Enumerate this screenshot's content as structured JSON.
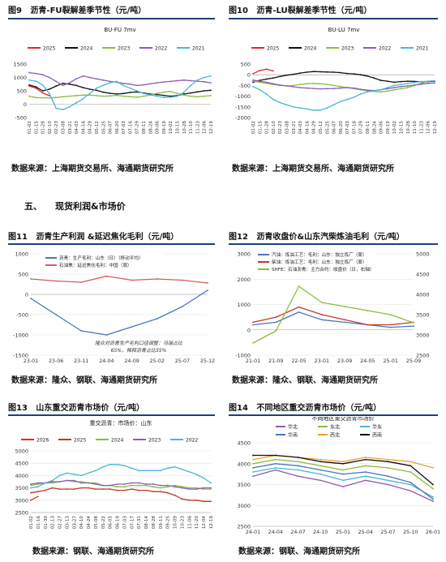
{
  "section": {
    "number": "五、",
    "title": "现货利润&市场价"
  },
  "figures": [
    {
      "label": "图9",
      "title": "沥青-FU裂解差季节性（元/吨）",
      "source": "数据来源：上海期货交易所、海通期货研究所",
      "legend": [
        "2025",
        "2024",
        "2023",
        "2022",
        "2021"
      ]
    },
    {
      "label": "图10",
      "title": "沥青-LU裂解差季节性（元/吨）",
      "source": "数据来源：上海期货交易所、海通期货研究所",
      "legend": [
        "2025",
        "2024",
        "2023",
        "2022",
        "2021"
      ]
    },
    {
      "label": "图11",
      "title": "沥青生产利润 &延迟焦化毛利（元/吨）",
      "source": "数据来源：隆众、钢联、海通期货研究所",
      "legend": [
        "沥青：生产毛利：山东（日）（移动平均）",
        "石油焦：延迟焦化毛利：中国（周）"
      ],
      "note": "隆众对沥青生产毛利口径调整：马瑞占比65%，稀释沥青占比35%"
    },
    {
      "label": "图12",
      "title": "沥青收盘价&山东汽柴炼油毛利（元/吨）",
      "source": "数据来源：隆众、钢联、海通期货研究所",
      "legend": [
        "汽油：炼油工艺：毛利：山东：独立炼厂（周）",
        "柴油：炼油工艺：毛利：山东：独立炼厂（周）",
        "SHFE：石油沥青：主力合约：收盘价（日，右轴）"
      ]
    },
    {
      "label": "图13",
      "title": "山东重交沥青市场价（元/吨）",
      "source": "数据来源：钢联、海通期货研究所",
      "legend": [
        "2026",
        "2025",
        "2024",
        "2023",
        "2022"
      ]
    },
    {
      "label": "图14",
      "title": "不同地区重交沥青市场价（元/吨）",
      "source": "数据来源：钢联、海通期货研究所",
      "legend": [
        "华北",
        "东北",
        "华东",
        "华南",
        "西北",
        "西南"
      ]
    }
  ],
  "chart_data": [
    {
      "type": "line",
      "title": "BU-FU 7mv",
      "xlabel": "",
      "ylabel": "",
      "ylim": [
        -500,
        1500
      ],
      "yticks": [
        -500,
        0,
        500,
        1000,
        1500
      ],
      "x": [
        "01-02",
        "01-15",
        "01-28",
        "02-10",
        "02-23",
        "03-08",
        "03-21",
        "04-03",
        "04-16",
        "04-29",
        "05-12",
        "05-25",
        "06-07",
        "06-20",
        "07-03",
        "07-16",
        "07-29",
        "08-11",
        "08-24",
        "09-06",
        "09-19",
        "10-02",
        "10-15",
        "10-28",
        "11-10",
        "11-23",
        "12-06",
        "12-19"
      ],
      "colors": {
        "2025": "#e8262a",
        "2024": "#111111",
        "2023": "#8bbd3e",
        "2022": "#8e5bb5",
        "2021": "#49b7d8"
      },
      "series": [
        {
          "name": "2025",
          "values": [
            680,
            600,
            420,
            320,
            null,
            null,
            null,
            null,
            null,
            null,
            null,
            null,
            null,
            null,
            null,
            null,
            null,
            null,
            null,
            null,
            null,
            null,
            null,
            null,
            null,
            null,
            null,
            null
          ]
        },
        {
          "name": "2024",
          "values": [
            720,
            650,
            500,
            560,
            680,
            780,
            750,
            700,
            620,
            560,
            520,
            450,
            410,
            380,
            400,
            440,
            460,
            420,
            380,
            360,
            330,
            300,
            320,
            380,
            420,
            460,
            500,
            520
          ]
        },
        {
          "name": "2023",
          "values": [
            300,
            250,
            240,
            230,
            250,
            280,
            300,
            320,
            340,
            340,
            320,
            300,
            310,
            330,
            300,
            280,
            260,
            300,
            340,
            400,
            450,
            480,
            400,
            340,
            300,
            280,
            300,
            320
          ]
        },
        {
          "name": "2022",
          "values": [
            1180,
            1150,
            1100,
            1000,
            850,
            700,
            800,
            950,
            1050,
            1000,
            950,
            900,
            850,
            820,
            780,
            750,
            700,
            720,
            760,
            800,
            830,
            850,
            880,
            900,
            880,
            860,
            840,
            800
          ]
        },
        {
          "name": "2021",
          "values": [
            900,
            860,
            720,
            400,
            -150,
            -200,
            -100,
            50,
            200,
            400,
            600,
            700,
            800,
            850,
            700,
            600,
            500,
            400,
            350,
            300,
            250,
            260,
            300,
            450,
            700,
            900,
            1000,
            1050
          ]
        }
      ]
    },
    {
      "type": "line",
      "title": "BU-LU 7mv",
      "xlabel": "",
      "ylabel": "",
      "ylim": [
        -2000,
        500
      ],
      "yticks": [
        -2000,
        -1500,
        -1000,
        -500,
        0,
        500
      ],
      "x": [
        "01-02",
        "01-15",
        "01-28",
        "02-10",
        "02-23",
        "03-08",
        "03-21",
        "04-03",
        "04-16",
        "04-29",
        "05-12",
        "05-25",
        "06-07",
        "06-20",
        "07-03",
        "07-16",
        "07-29",
        "08-11",
        "08-24",
        "09-06",
        "09-19",
        "10-02",
        "10-15",
        "10-28",
        "11-10",
        "11-23",
        "12-06",
        "12-19"
      ],
      "colors": {
        "2025": "#e8262a",
        "2024": "#111111",
        "2023": "#8bbd3e",
        "2022": "#8e5bb5",
        "2021": "#49b7d8"
      },
      "series": [
        {
          "name": "2025",
          "values": [
            50,
            200,
            260,
            180,
            null,
            null,
            null,
            null,
            null,
            null,
            null,
            null,
            null,
            null,
            null,
            null,
            null,
            null,
            null,
            null,
            null,
            null,
            null,
            null,
            null,
            null,
            null,
            null
          ]
        },
        {
          "name": "2024",
          "values": [
            -350,
            -260,
            -200,
            -150,
            -80,
            -20,
            20,
            80,
            120,
            150,
            140,
            130,
            120,
            100,
            60,
            40,
            0,
            -60,
            -150,
            -260,
            -300,
            -350,
            -320,
            -300,
            -310,
            -330,
            -320,
            -300
          ]
        },
        {
          "name": "2023",
          "values": [
            -300,
            -350,
            -400,
            -450,
            -500,
            -520,
            -500,
            -450,
            -420,
            -400,
            -420,
            -450,
            -500,
            -550,
            -600,
            -650,
            -700,
            -750,
            -780,
            -800,
            -760,
            -700,
            -650,
            -600,
            -500,
            -400,
            -300,
            -280
          ]
        },
        {
          "name": "2022",
          "values": [
            -250,
            -300,
            -350,
            -420,
            -480,
            -520,
            -560,
            -600,
            -620,
            -640,
            -660,
            -650,
            -640,
            -620,
            -600,
            -620,
            -680,
            -720,
            -740,
            -700,
            -650,
            -600,
            -550,
            -520,
            -480,
            -440,
            -400,
            -380
          ]
        },
        {
          "name": "2021",
          "values": [
            -550,
            -700,
            -900,
            -1150,
            -1300,
            -1400,
            -1500,
            -1550,
            -1600,
            -1650,
            -1650,
            -1550,
            -1400,
            -1250,
            -1150,
            -1050,
            -900,
            -800,
            -750,
            -700,
            -600,
            -500,
            -450,
            -400,
            -360,
            -320,
            -300,
            -280
          ]
        }
      ]
    },
    {
      "type": "line",
      "xlabel": "",
      "ylabel": "",
      "ylim": [
        -1500,
        1000
      ],
      "yticks": [
        -1500,
        -1000,
        -500,
        0,
        500,
        1000
      ],
      "x": [
        "23-01",
        "23-06",
        "23-11",
        "24-04",
        "24-09",
        "25-02",
        "25-07",
        "25-12"
      ],
      "colors": {
        "沥青：生产毛利：山东（日）（移动平均）": "#4a76bd",
        "石油焦：延迟焦化毛利：中国（周）": "#d65a5a"
      },
      "series": [
        {
          "name": "沥青：生产毛利：山东（日）（移动平均）",
          "values": [
            -100,
            -500,
            -900,
            -1000,
            -800,
            -600,
            -300,
            100
          ]
        },
        {
          "name": "石油焦：延迟焦化毛利：中国（周）",
          "values": [
            380,
            330,
            300,
            450,
            350,
            380,
            350,
            280
          ]
        }
      ]
    },
    {
      "type": "line",
      "xlabel": "",
      "ylabel": "",
      "ylim": [
        -1000,
        3000
      ],
      "yticks": [
        -1000,
        0,
        1000,
        2000,
        3000
      ],
      "y2lim": [
        2500,
        5000
      ],
      "y2ticks": [
        2500,
        3000,
        3500,
        4000,
        4500,
        5000
      ],
      "x": [
        "21-01",
        "21-09",
        "22-05",
        "23-01",
        "23-09",
        "24-05",
        "25-01",
        "25-09"
      ],
      "colors": {
        "汽油：炼油工艺：毛利：山东：独立炼厂（周）": "#4a76bd",
        "柴油：炼油工艺：毛利：山东：独立炼厂（周）": "#c0392b",
        "SHFE：石油沥青：主力合约：收盘价（日，右轴）": "#8bbd3e"
      },
      "series": [
        {
          "name": "汽油：炼油工艺：毛利：山东：独立炼厂（周）",
          "values": [
            200,
            300,
            700,
            400,
            300,
            200,
            100,
            150
          ]
        },
        {
          "name": "柴油：炼油工艺：毛利：山东：独立炼厂（周）",
          "values": [
            300,
            500,
            900,
            600,
            400,
            200,
            200,
            300
          ]
        },
        {
          "name": "SHFE：石油沥青：主力合约：收盘价（日，右轴）",
          "axis": "right",
          "values": [
            2800,
            3100,
            4200,
            3800,
            3700,
            3600,
            3500,
            3300
          ]
        }
      ]
    },
    {
      "type": "line",
      "title": "重交沥青：市场价：山东",
      "xlabel": "",
      "ylabel": "",
      "ylim": [
        2500,
        5000
      ],
      "yticks": [
        2500,
        3000,
        3500,
        4000,
        4500,
        5000
      ],
      "x": [
        "01-02",
        "01-16",
        "01-30",
        "02-13",
        "02-27",
        "03-13",
        "03-27",
        "04-10",
        "04-24",
        "05-08",
        "05-22",
        "06-05",
        "06-19",
        "07-03",
        "07-17",
        "07-31",
        "08-14",
        "08-28",
        "09-11",
        "09-25",
        "10-09",
        "10-23",
        "11-06",
        "11-20",
        "12-04",
        "12-19"
      ],
      "colors": {
        "2026": "#e8262a",
        "2025": "#c0392b",
        "2024": "#8bbd3e",
        "2023": "#8e5bb5",
        "2022": "#49b7d8"
      },
      "series": [
        {
          "name": "2026",
          "values": [
            3000,
            3150,
            null,
            null,
            null,
            null,
            null,
            null,
            null,
            null,
            null,
            null,
            null,
            null,
            null,
            null,
            null,
            null,
            null,
            null,
            null,
            null,
            null,
            null,
            null,
            null
          ]
        },
        {
          "name": "2025",
          "values": [
            3300,
            3350,
            3400,
            3500,
            3450,
            3450,
            3450,
            3500,
            3500,
            3450,
            3450,
            3450,
            3400,
            3400,
            3450,
            3400,
            3400,
            3350,
            3350,
            3300,
            3200,
            3050,
            3000,
            3000,
            2950,
            2950
          ]
        },
        {
          "name": "2024",
          "values": [
            3600,
            3650,
            3700,
            3700,
            3750,
            3800,
            3750,
            3750,
            3700,
            3700,
            3600,
            3600,
            3550,
            3550,
            3600,
            3600,
            3600,
            3550,
            3500,
            3550,
            3600,
            3550,
            3500,
            3500,
            3450,
            3450
          ]
        },
        {
          "name": "2023",
          "values": [
            3650,
            3700,
            3700,
            3750,
            3750,
            3800,
            3800,
            3700,
            3700,
            3650,
            3600,
            3600,
            3650,
            3650,
            3700,
            3700,
            3650,
            3650,
            3600,
            3600,
            3550,
            3500,
            3450,
            3450,
            3500,
            3500
          ]
        },
        {
          "name": "2022",
          "values": [
            3500,
            3550,
            3700,
            3800,
            4000,
            4100,
            4050,
            4000,
            4100,
            4200,
            4350,
            4450,
            4450,
            4400,
            4300,
            4200,
            4200,
            4200,
            4200,
            4300,
            4350,
            4250,
            4150,
            4050,
            3900,
            3700
          ]
        }
      ]
    },
    {
      "type": "line",
      "title": "不同地区重交沥青市场价",
      "xlabel": "",
      "ylabel": "",
      "ylim": [
        2500,
        4500
      ],
      "yticks": [
        2500,
        3000,
        3500,
        4000,
        4500
      ],
      "x": [
        "24-01",
        "24-04",
        "24-07",
        "24-10",
        "25-01",
        "25-04",
        "25-07",
        "25-10",
        "26-01"
      ],
      "colors": {
        "华北": "#8e5bb5",
        "东北": "#8bbd3e",
        "华东": "#49b7d8",
        "华南": "#4a76bd",
        "西北": "#f0a030",
        "西南": "#111111"
      },
      "series": [
        {
          "name": "华北",
          "values": [
            3700,
            3850,
            3700,
            3600,
            3450,
            3600,
            3500,
            3350,
            3100
          ]
        },
        {
          "name": "东北",
          "values": [
            4000,
            4100,
            4050,
            3950,
            3850,
            3950,
            3900,
            3800,
            3400
          ]
        },
        {
          "name": "华东",
          "values": [
            3800,
            3900,
            3850,
            3750,
            3600,
            3700,
            3600,
            3500,
            3200
          ]
        },
        {
          "name": "华南",
          "values": [
            3900,
            4000,
            3950,
            3850,
            3750,
            3800,
            3700,
            3550,
            3150
          ]
        },
        {
          "name": "西北",
          "values": [
            4100,
            4200,
            4150,
            4100,
            4050,
            4150,
            4100,
            4050,
            3900
          ]
        },
        {
          "name": "西南",
          "values": [
            4200,
            4200,
            4150,
            4050,
            4000,
            4100,
            4050,
            3950,
            3500
          ]
        }
      ]
    }
  ]
}
